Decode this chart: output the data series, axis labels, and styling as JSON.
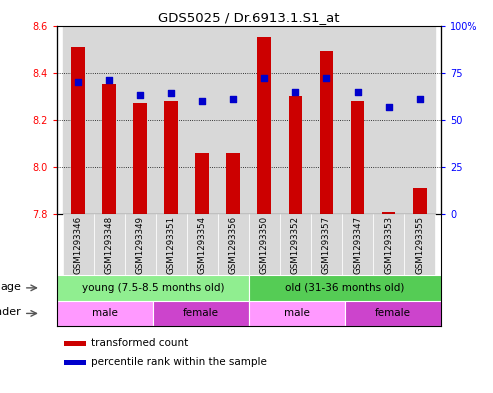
{
  "title": "GDS5025 / Dr.6913.1.S1_at",
  "samples": [
    "GSM1293346",
    "GSM1293348",
    "GSM1293349",
    "GSM1293351",
    "GSM1293354",
    "GSM1293356",
    "GSM1293350",
    "GSM1293352",
    "GSM1293357",
    "GSM1293347",
    "GSM1293353",
    "GSM1293355"
  ],
  "bar_values": [
    8.51,
    8.35,
    8.27,
    8.28,
    8.06,
    8.06,
    8.55,
    8.3,
    8.49,
    8.28,
    7.81,
    7.91
  ],
  "bar_bottom": 7.8,
  "percentile_values": [
    70,
    71,
    63,
    64,
    60,
    61,
    72,
    65,
    72,
    65,
    57,
    61
  ],
  "ylim_left": [
    7.8,
    8.6
  ],
  "ylim_right": [
    0,
    100
  ],
  "yticks_left": [
    7.8,
    8.0,
    8.2,
    8.4,
    8.6
  ],
  "yticks_right": [
    0,
    25,
    50,
    75,
    100
  ],
  "bar_color": "#cc0000",
  "dot_color": "#0000cc",
  "age_young_color": "#90EE90",
  "age_old_color": "#55CC55",
  "gender_male_color": "#FF99FF",
  "gender_female_color": "#CC44CC",
  "age_young_label": "young (7.5-8.5 months old)",
  "age_old_label": "old (31-36 months old)",
  "legend_bar_label": "transformed count",
  "legend_dot_label": "percentile rank within the sample",
  "n_young": 6,
  "n_old": 6,
  "n_young_male": 3,
  "n_young_female": 3,
  "n_old_male": 3,
  "n_old_female": 3,
  "xlabel_gray": "#cccccc",
  "grid_color": "#000000"
}
